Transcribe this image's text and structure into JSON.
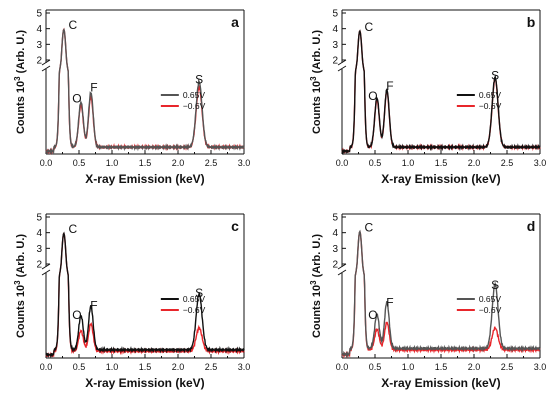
{
  "figure": {
    "shared_ylabel_main": "Counts 10",
    "shared_ylabel_exp": "3",
    "shared_ylabel_unit": " (Arb. U.)",
    "shared_xlabel": "X-ray Emission (keV)"
  },
  "chart_data": [
    {
      "type": "line",
      "panel_label": "a",
      "xlabel": "X-ray Emission (keV)",
      "ylabel": "Counts 10^3 (Arb. U.)",
      "xlim": [
        0.0,
        3.0
      ],
      "ylim_lower": [
        0.0,
        0.6
      ],
      "ylim_upper": [
        2.0,
        5.0
      ],
      "broken_y_axis": true,
      "x_ticks": [
        "0.0",
        "0.5",
        "1.0",
        "1.5",
        "2.0",
        "2.5",
        "3.0"
      ],
      "y_ticks_upper": [
        "2",
        "3",
        "4",
        "5"
      ],
      "peak_labels": [
        {
          "text": "C",
          "x": 0.27,
          "y": 3.9
        },
        {
          "text": "O",
          "x": 0.53,
          "y": 0.34
        },
        {
          "text": "F",
          "x": 0.68,
          "y": 0.42
        },
        {
          "text": "S",
          "x": 2.32,
          "y": 0.48
        }
      ],
      "legend": {
        "position": "right-center"
      },
      "series": [
        {
          "name": "0.65V",
          "color": "#555555",
          "baseline": 0.05,
          "peaks": [
            {
              "center": 0.27,
              "height": 3.9,
              "width": 0.035
            },
            {
              "center": 0.53,
              "height": 0.33,
              "width": 0.035
            },
            {
              "center": 0.68,
              "height": 0.4,
              "width": 0.035
            },
            {
              "center": 2.32,
              "height": 0.48,
              "width": 0.045
            }
          ]
        },
        {
          "name": "−0.6V",
          "color": "#e8262b",
          "baseline": 0.05,
          "peaks": [
            {
              "center": 0.27,
              "height": 3.9,
              "width": 0.035
            },
            {
              "center": 0.53,
              "height": 0.31,
              "width": 0.035
            },
            {
              "center": 0.68,
              "height": 0.37,
              "width": 0.035
            },
            {
              "center": 2.32,
              "height": 0.44,
              "width": 0.045
            }
          ]
        }
      ]
    },
    {
      "type": "line",
      "panel_label": "b",
      "xlabel": "X-ray Emission (keV)",
      "ylabel": "Counts 10^3 (Arb. U.)",
      "xlim": [
        0.0,
        3.0
      ],
      "ylim_lower": [
        0.0,
        0.6
      ],
      "ylim_upper": [
        2.0,
        5.0
      ],
      "broken_y_axis": true,
      "x_ticks": [
        "0.0",
        "0.5",
        "1.0",
        "1.5",
        "2.0",
        "2.5",
        "3.0"
      ],
      "y_ticks_upper": [
        "2",
        "3",
        "4",
        "5"
      ],
      "peak_labels": [
        {
          "text": "C",
          "x": 0.27,
          "y": 3.8
        },
        {
          "text": "O",
          "x": 0.53,
          "y": 0.36
        },
        {
          "text": "F",
          "x": 0.68,
          "y": 0.43
        },
        {
          "text": "S",
          "x": 2.32,
          "y": 0.51
        }
      ],
      "legend": {
        "position": "right-center"
      },
      "series": [
        {
          "name": "0.65V",
          "color": "#111111",
          "baseline": 0.05,
          "peaks": [
            {
              "center": 0.27,
              "height": 3.8,
              "width": 0.035
            },
            {
              "center": 0.53,
              "height": 0.36,
              "width": 0.035
            },
            {
              "center": 0.68,
              "height": 0.42,
              "width": 0.035
            },
            {
              "center": 2.32,
              "height": 0.51,
              "width": 0.045
            }
          ]
        },
        {
          "name": "−0.6V",
          "color": "#e8262b",
          "baseline": 0.05,
          "peaks": [
            {
              "center": 0.27,
              "height": 3.8,
              "width": 0.035
            },
            {
              "center": 0.53,
              "height": 0.35,
              "width": 0.035
            },
            {
              "center": 0.68,
              "height": 0.41,
              "width": 0.035
            },
            {
              "center": 2.32,
              "height": 0.5,
              "width": 0.045
            }
          ]
        }
      ]
    },
    {
      "type": "line",
      "panel_label": "c",
      "xlabel": "X-ray Emission (keV)",
      "ylabel": "Counts 10^3 (Arb. U.)",
      "xlim": [
        0.0,
        3.0
      ],
      "ylim_lower": [
        0.0,
        0.6
      ],
      "ylim_upper": [
        2.0,
        5.0
      ],
      "broken_y_axis": true,
      "x_ticks": [
        "0.0",
        "0.5",
        "1.0",
        "1.5",
        "2.0",
        "2.5",
        "3.0"
      ],
      "y_ticks_upper": [
        "2",
        "3",
        "4",
        "5"
      ],
      "peak_labels": [
        {
          "text": "C",
          "x": 0.27,
          "y": 3.9
        },
        {
          "text": "O",
          "x": 0.53,
          "y": 0.25
        },
        {
          "text": "F",
          "x": 0.68,
          "y": 0.32
        },
        {
          "text": "S",
          "x": 2.32,
          "y": 0.41
        }
      ],
      "legend": {
        "position": "right-center"
      },
      "series": [
        {
          "name": "0.65V",
          "color": "#111111",
          "baseline": 0.06,
          "peaks": [
            {
              "center": 0.27,
              "height": 3.9,
              "width": 0.035
            },
            {
              "center": 0.53,
              "height": 0.25,
              "width": 0.035
            },
            {
              "center": 0.68,
              "height": 0.32,
              "width": 0.035
            },
            {
              "center": 2.32,
              "height": 0.41,
              "width": 0.045
            }
          ]
        },
        {
          "name": "−0.6V",
          "color": "#e8262b",
          "baseline": 0.05,
          "peaks": [
            {
              "center": 0.27,
              "height": 3.9,
              "width": 0.035
            },
            {
              "center": 0.53,
              "height": 0.15,
              "width": 0.035
            },
            {
              "center": 0.68,
              "height": 0.2,
              "width": 0.035
            },
            {
              "center": 2.32,
              "height": 0.17,
              "width": 0.045
            }
          ]
        }
      ]
    },
    {
      "type": "line",
      "panel_label": "d",
      "xlabel": "X-ray Emission (keV)",
      "ylabel": "Counts 10^3 (Arb. U.)",
      "xlim": [
        0.0,
        3.0
      ],
      "ylim_lower": [
        0.0,
        0.6
      ],
      "ylim_upper": [
        2.0,
        5.0
      ],
      "broken_y_axis": true,
      "x_ticks": [
        "0.0",
        "0.5",
        "1.0",
        "1.5",
        "2.0",
        "2.5",
        "3.0"
      ],
      "y_ticks_upper": [
        "2",
        "3",
        "4",
        "5"
      ],
      "peak_labels": [
        {
          "text": "C",
          "x": 0.27,
          "y": 4.0
        },
        {
          "text": "O",
          "x": 0.53,
          "y": 0.25
        },
        {
          "text": "F",
          "x": 0.68,
          "y": 0.34
        },
        {
          "text": "S",
          "x": 2.32,
          "y": 0.47
        }
      ],
      "legend": {
        "position": "right-center"
      },
      "series": [
        {
          "name": "0.65V",
          "color": "#555555",
          "baseline": 0.07,
          "peaks": [
            {
              "center": 0.27,
              "height": 4.0,
              "width": 0.035
            },
            {
              "center": 0.53,
              "height": 0.25,
              "width": 0.035
            },
            {
              "center": 0.68,
              "height": 0.34,
              "width": 0.035
            },
            {
              "center": 2.32,
              "height": 0.47,
              "width": 0.045
            }
          ]
        },
        {
          "name": "−0.6V",
          "color": "#e8262b",
          "baseline": 0.06,
          "peaks": [
            {
              "center": 0.27,
              "height": 4.0,
              "width": 0.035
            },
            {
              "center": 0.53,
              "height": 0.15,
              "width": 0.035
            },
            {
              "center": 0.68,
              "height": 0.2,
              "width": 0.035
            },
            {
              "center": 2.32,
              "height": 0.16,
              "width": 0.045
            }
          ]
        }
      ]
    }
  ]
}
